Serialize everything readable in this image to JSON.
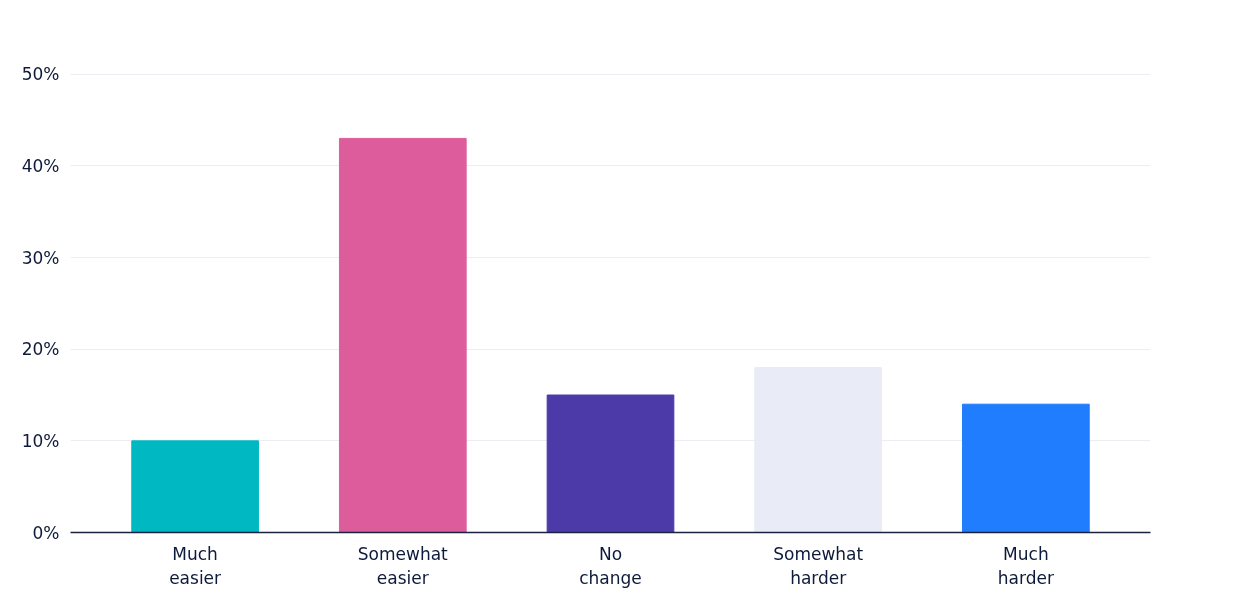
{
  "chart_data": {
    "type": "bar",
    "categories": [
      "Much easier",
      "Somewhat easier",
      "No change",
      "Somewhat harder",
      "Much harder"
    ],
    "values": [
      10,
      43,
      15,
      18,
      14
    ],
    "colors": [
      "#00b8c2",
      "#dd5d9c",
      "#4c3aa9",
      "#e9ebf6",
      "#1f7dfe"
    ],
    "ylim": [
      0,
      50
    ],
    "yticks": [
      {
        "value": 0,
        "label": "0%"
      },
      {
        "value": 10,
        "label": "10%"
      },
      {
        "value": 20,
        "label": "20%"
      },
      {
        "value": 30,
        "label": "30%"
      },
      {
        "value": 40,
        "label": "40%"
      },
      {
        "value": 50,
        "label": "50%"
      }
    ],
    "grid": "y"
  }
}
